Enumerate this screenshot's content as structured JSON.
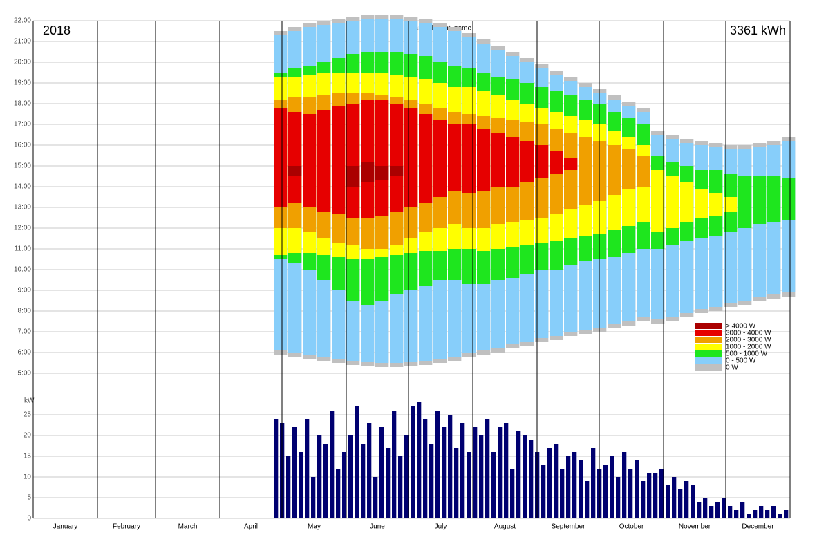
{
  "chart_data": [
    {
      "type": "range-bar",
      "title": "plant_id plant_name",
      "year": "2018",
      "total": "3361 kWh",
      "xlim": [
        0,
        365
      ],
      "ylim": [
        5,
        22
      ],
      "yticks": [
        {
          "value": 5,
          "label": "5:00"
        },
        {
          "value": 6,
          "label": "6:00"
        },
        {
          "value": 7,
          "label": "7:00"
        },
        {
          "value": 8,
          "label": "8:00"
        },
        {
          "value": 9,
          "label": "9:00"
        },
        {
          "value": 10,
          "label": "10:00"
        },
        {
          "value": 11,
          "label": "11:00"
        },
        {
          "value": 12,
          "label": "12:00"
        },
        {
          "value": 13,
          "label": "13:00"
        },
        {
          "value": 14,
          "label": "14:00"
        },
        {
          "value": 15,
          "label": "15:00"
        },
        {
          "value": 16,
          "label": "16:00"
        },
        {
          "value": 17,
          "label": "17:00"
        },
        {
          "value": 18,
          "label": "18:00"
        },
        {
          "value": 19,
          "label": "19:00"
        },
        {
          "value": 20,
          "label": "20:00"
        },
        {
          "value": 21,
          "label": "21:00"
        },
        {
          "value": 22,
          "label": "22:00"
        }
      ],
      "grid": true,
      "legend": "right",
      "x": [
        116,
        123,
        130,
        137,
        144,
        151,
        158,
        165,
        172,
        179,
        186,
        193,
        200,
        207,
        214,
        221,
        228,
        235,
        242,
        249,
        256,
        263,
        270,
        277,
        284,
        291,
        298,
        305,
        312,
        319,
        326,
        333,
        340,
        347,
        354,
        361
      ],
      "series": [
        {
          "name": "0 W",
          "color": "#c0c0c0",
          "values": [
            [
              5.9,
              21.5
            ],
            [
              5.8,
              21.7
            ],
            [
              5.7,
              21.9
            ],
            [
              5.6,
              22.0
            ],
            [
              5.5,
              22.1
            ],
            [
              5.4,
              22.2
            ],
            [
              5.35,
              22.3
            ],
            [
              5.3,
              22.3
            ],
            [
              5.3,
              22.3
            ],
            [
              5.35,
              22.2
            ],
            [
              5.4,
              22.1
            ],
            [
              5.5,
              21.9
            ],
            [
              5.6,
              21.7
            ],
            [
              5.8,
              21.4
            ],
            [
              5.9,
              21.1
            ],
            [
              6.0,
              20.8
            ],
            [
              6.2,
              20.5
            ],
            [
              6.3,
              20.2
            ],
            [
              6.5,
              19.9
            ],
            [
              6.6,
              19.6
            ],
            [
              6.8,
              19.3
            ],
            [
              6.9,
              19.0
            ],
            [
              7.0,
              18.7
            ],
            [
              7.2,
              18.4
            ],
            [
              7.3,
              18.1
            ],
            [
              7.5,
              17.8
            ],
            [
              7.4,
              16.7
            ],
            [
              7.5,
              16.5
            ],
            [
              7.7,
              16.3
            ],
            [
              7.9,
              16.2
            ],
            [
              8.0,
              16.1
            ],
            [
              8.2,
              16.0
            ],
            [
              8.3,
              16.0
            ],
            [
              8.5,
              16.1
            ],
            [
              8.6,
              16.2
            ],
            [
              8.7,
              16.4
            ]
          ]
        },
        {
          "name": "0 - 500 W",
          "color": "#87cefa",
          "values": [
            [
              6.1,
              21.3
            ],
            [
              6.0,
              21.5
            ],
            [
              5.9,
              21.7
            ],
            [
              5.8,
              21.8
            ],
            [
              5.7,
              21.9
            ],
            [
              5.6,
              22.0
            ],
            [
              5.55,
              22.1
            ],
            [
              5.5,
              22.1
            ],
            [
              5.5,
              22.1
            ],
            [
              5.55,
              22.0
            ],
            [
              5.6,
              21.9
            ],
            [
              5.7,
              21.7
            ],
            [
              5.8,
              21.5
            ],
            [
              6.0,
              21.2
            ],
            [
              6.1,
              20.9
            ],
            [
              6.2,
              20.6
            ],
            [
              6.4,
              20.3
            ],
            [
              6.5,
              20.0
            ],
            [
              6.7,
              19.7
            ],
            [
              6.8,
              19.4
            ],
            [
              7.0,
              19.1
            ],
            [
              7.1,
              18.8
            ],
            [
              7.2,
              18.5
            ],
            [
              7.4,
              18.2
            ],
            [
              7.5,
              17.9
            ],
            [
              7.7,
              17.6
            ],
            [
              7.6,
              16.5
            ],
            [
              7.7,
              16.3
            ],
            [
              7.9,
              16.1
            ],
            [
              8.1,
              16.0
            ],
            [
              8.2,
              15.9
            ],
            [
              8.4,
              15.8
            ],
            [
              8.5,
              15.8
            ],
            [
              8.7,
              15.9
            ],
            [
              8.8,
              16.0
            ],
            [
              8.9,
              16.2
            ]
          ]
        },
        {
          "name": "500 - 1000 W",
          "color": "#1ee61e",
          "values": [
            [
              10.5,
              19.5
            ],
            [
              10.3,
              19.7
            ],
            [
              10.0,
              19.8
            ],
            [
              9.5,
              20.0
            ],
            [
              9.0,
              20.2
            ],
            [
              8.5,
              20.4
            ],
            [
              8.3,
              20.5
            ],
            [
              8.5,
              20.5
            ],
            [
              8.8,
              20.5
            ],
            [
              9.0,
              20.4
            ],
            [
              9.2,
              20.3
            ],
            [
              9.5,
              20.0
            ],
            [
              9.5,
              19.8
            ],
            [
              9.3,
              19.7
            ],
            [
              9.3,
              19.5
            ],
            [
              9.5,
              19.3
            ],
            [
              9.6,
              19.2
            ],
            [
              9.8,
              19.0
            ],
            [
              10.0,
              18.8
            ],
            [
              10.0,
              18.6
            ],
            [
              10.2,
              18.4
            ],
            [
              10.4,
              18.2
            ],
            [
              10.5,
              18.0
            ],
            [
              10.6,
              17.6
            ],
            [
              10.8,
              17.3
            ],
            [
              11.0,
              17.0
            ],
            [
              11.0,
              15.5
            ],
            [
              11.2,
              15.2
            ],
            [
              11.4,
              15.0
            ],
            [
              11.5,
              14.8
            ],
            [
              11.6,
              14.8
            ],
            [
              11.8,
              14.6
            ],
            [
              12.0,
              14.5
            ],
            [
              12.2,
              14.5
            ],
            [
              12.3,
              14.5
            ],
            [
              12.4,
              14.4
            ]
          ]
        },
        {
          "name": "1000 - 2000 W",
          "color": "#ffff00",
          "values": [
            [
              10.7,
              19.3
            ],
            [
              10.8,
              19.3
            ],
            [
              10.8,
              19.4
            ],
            [
              10.7,
              19.5
            ],
            [
              10.6,
              19.5
            ],
            [
              10.5,
              19.5
            ],
            [
              10.5,
              19.5
            ],
            [
              10.6,
              19.5
            ],
            [
              10.7,
              19.4
            ],
            [
              10.8,
              19.3
            ],
            [
              10.9,
              19.2
            ],
            [
              10.9,
              19.0
            ],
            [
              11.0,
              18.8
            ],
            [
              11.0,
              18.8
            ],
            [
              10.9,
              18.6
            ],
            [
              11.0,
              18.4
            ],
            [
              11.1,
              18.2
            ],
            [
              11.2,
              18.0
            ],
            [
              11.3,
              17.8
            ],
            [
              11.4,
              17.6
            ],
            [
              11.5,
              17.4
            ],
            [
              11.6,
              17.2
            ],
            [
              11.7,
              17.0
            ],
            [
              11.9,
              16.7
            ],
            [
              12.1,
              16.4
            ],
            [
              12.3,
              16.0
            ],
            [
              11.8,
              14.8
            ],
            [
              12.0,
              14.5
            ],
            [
              12.3,
              14.2
            ],
            [
              12.5,
              13.9
            ],
            [
              12.6,
              13.7
            ],
            [
              12.8,
              13.5
            ],
            null,
            null,
            null,
            null
          ]
        },
        {
          "name": "2000 - 3000 W",
          "color": "#f0a000",
          "values": [
            [
              12.0,
              18.2
            ],
            [
              12.0,
              18.3
            ],
            [
              11.8,
              18.3
            ],
            [
              11.5,
              18.4
            ],
            [
              11.3,
              18.5
            ],
            [
              11.2,
              18.5
            ],
            [
              11.0,
              18.5
            ],
            [
              11.0,
              18.4
            ],
            [
              11.2,
              18.3
            ],
            [
              11.5,
              18.2
            ],
            [
              11.8,
              18.0
            ],
            [
              12.0,
              17.8
            ],
            [
              12.2,
              17.6
            ],
            [
              12.0,
              17.5
            ],
            [
              12.0,
              17.4
            ],
            [
              12.2,
              17.3
            ],
            [
              12.3,
              17.2
            ],
            [
              12.4,
              17.1
            ],
            [
              12.5,
              17.0
            ],
            [
              12.7,
              16.8
            ],
            [
              12.9,
              16.6
            ],
            [
              13.1,
              16.4
            ],
            [
              13.3,
              16.2
            ],
            [
              13.6,
              16.0
            ],
            [
              13.9,
              15.8
            ],
            [
              14.0,
              15.5
            ],
            null,
            null,
            null,
            null,
            null,
            null,
            null,
            null,
            null,
            null
          ]
        },
        {
          "name": "3000 - 4000 W",
          "color": "#e60000",
          "values": [
            [
              13.0,
              17.8
            ],
            [
              13.2,
              17.6
            ],
            [
              13.0,
              17.5
            ],
            [
              12.8,
              17.7
            ],
            [
              12.7,
              17.9
            ],
            [
              12.5,
              18.0
            ],
            [
              12.5,
              18.2
            ],
            [
              12.6,
              18.2
            ],
            [
              12.8,
              18.0
            ],
            [
              13.0,
              17.8
            ],
            [
              13.2,
              17.5
            ],
            [
              13.5,
              17.2
            ],
            [
              13.8,
              17.0
            ],
            [
              13.7,
              17.0
            ],
            [
              13.8,
              16.8
            ],
            [
              14.0,
              16.6
            ],
            [
              14.0,
              16.4
            ],
            [
              14.2,
              16.2
            ],
            [
              14.4,
              16.0
            ],
            [
              14.6,
              15.7
            ],
            [
              14.8,
              15.4
            ],
            null,
            null,
            null,
            null,
            null,
            null,
            null,
            null,
            null,
            null,
            null,
            null,
            null,
            null,
            null
          ]
        },
        {
          "name": "> 4000 W",
          "color": "#aa0000",
          "values": [
            null,
            [
              14.5,
              15.0
            ],
            null,
            null,
            null,
            [
              14.0,
              15.0
            ],
            [
              14.2,
              15.2
            ],
            [
              14.3,
              15.0
            ],
            [
              14.5,
              15.0
            ],
            null,
            null,
            null,
            null,
            null,
            null,
            null,
            null,
            null,
            null,
            null,
            null,
            null,
            null,
            null,
            null,
            null,
            null,
            null,
            null,
            null,
            null,
            null,
            null,
            null,
            null,
            null
          ]
        }
      ]
    },
    {
      "type": "bar",
      "ylabel": "kW",
      "xlim": [
        0,
        365
      ],
      "ylim": [
        0,
        28
      ],
      "yticks": [
        0,
        5,
        10,
        15,
        20,
        25
      ],
      "grid": true,
      "color": "#000070",
      "categories": [
        "January",
        "February",
        "March",
        "April",
        "May",
        "June",
        "July",
        "August",
        "September",
        "October",
        "November",
        "December"
      ],
      "xticks": [
        0,
        31,
        59,
        90,
        120,
        151,
        181,
        212,
        243,
        273,
        304,
        334,
        365
      ],
      "x": [
        116,
        119,
        122,
        125,
        128,
        131,
        134,
        137,
        140,
        143,
        146,
        149,
        152,
        155,
        158,
        161,
        164,
        167,
        170,
        173,
        176,
        179,
        182,
        185,
        188,
        191,
        194,
        197,
        200,
        203,
        206,
        209,
        212,
        215,
        218,
        221,
        224,
        227,
        230,
        233,
        236,
        239,
        242,
        245,
        248,
        251,
        254,
        257,
        260,
        263,
        266,
        269,
        272,
        275,
        278,
        281,
        284,
        287,
        290,
        293,
        296,
        299,
        302,
        305,
        308,
        311,
        314,
        317,
        320,
        323,
        326,
        329,
        332,
        335,
        338,
        341,
        344,
        347,
        350,
        353,
        356,
        359,
        362
      ],
      "values": [
        24,
        23,
        15,
        22,
        16,
        24,
        10,
        20,
        18,
        26,
        12,
        16,
        20,
        27,
        18,
        23,
        10,
        22,
        17,
        26,
        15,
        20,
        27,
        28,
        24,
        18,
        26,
        22,
        25,
        17,
        23,
        16,
        22,
        20,
        24,
        16,
        22,
        23,
        12,
        21,
        20,
        19,
        16,
        13,
        17,
        18,
        12,
        15,
        16,
        14,
        9,
        17,
        12,
        13,
        15,
        10,
        16,
        12,
        14,
        9,
        11,
        11,
        12,
        8,
        10,
        7,
        9,
        8,
        4,
        5,
        3,
        4,
        5,
        3,
        2,
        4,
        1,
        2,
        3,
        2,
        3,
        1,
        2
      ]
    }
  ]
}
